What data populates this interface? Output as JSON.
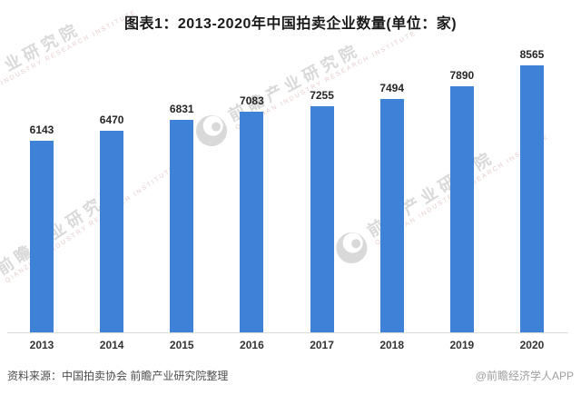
{
  "title": "图表1：2013-2020年中国拍卖企业数量(单位：家)",
  "chart_data": {
    "type": "bar",
    "title": "图表1：2013-2020年中国拍卖企业数量(单位：家)",
    "categories": [
      "2013",
      "2014",
      "2015",
      "2016",
      "2017",
      "2018",
      "2019",
      "2020"
    ],
    "values": [
      6143,
      6470,
      6831,
      7083,
      7255,
      7494,
      7890,
      8565
    ],
    "xlabel": "",
    "ylabel": "",
    "unit": "家",
    "ylim": [
      0,
      8565
    ],
    "grid": false,
    "legend": false,
    "y_axis_visible": false,
    "data_labels": true,
    "bar_color": "#3E82D8",
    "axis_line_color": "#d9d9d9",
    "label_color": "#262626"
  },
  "footer": {
    "source": "资料来源：中国拍卖协会 前瞻产业研究院整理",
    "credit": "@前瞻经济学人APP"
  },
  "watermark": {
    "text": "前瞻产业研究院",
    "subtext": "QIANZHAN INDUSTRY RESEARCH INSTITUTE",
    "logo": "qianzhan-logo-icon",
    "color": "#d9d9d9"
  }
}
